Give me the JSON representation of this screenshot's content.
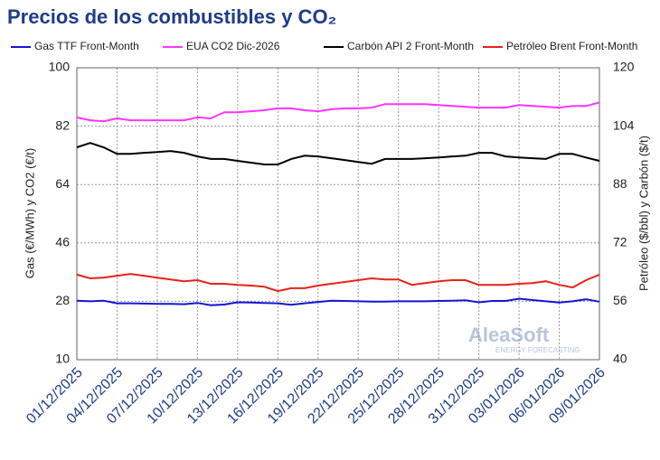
{
  "chart_data": {
    "type": "line",
    "title": "Precios de los combustibles y CO₂",
    "ylabel": "Gas (€/MWh) y CO2 (€/t)",
    "y2label": "Petróleo ($/bbl) y Carbón ($/t)",
    "watermark": [
      "AleaSoft",
      "ENERGY FORECASTING"
    ],
    "categories": [
      "01/12/2025",
      null,
      null,
      "04/12/2025",
      null,
      null,
      "07/12/2025",
      null,
      null,
      "10/12/2025",
      null,
      null,
      "13/12/2025",
      null,
      null,
      "16/12/2025",
      null,
      null,
      "19/12/2025",
      null,
      null,
      "22/12/2025",
      null,
      null,
      "25/12/2025",
      null,
      null,
      "28/12/2025",
      null,
      null,
      "31/12/2025",
      null,
      null,
      "03/01/2026",
      null,
      null,
      "06/01/2026",
      null,
      null,
      "09/01/2026"
    ],
    "ylim": [
      10,
      100
    ],
    "yticks": [
      10,
      28,
      46,
      64,
      82,
      100
    ],
    "y2lim": [
      40,
      120
    ],
    "y2ticks": [
      40,
      56,
      72,
      88,
      104,
      120
    ],
    "grid": true,
    "legend": "top",
    "series": [
      {
        "name": "Gas TTF Front-Month",
        "color": "#1414d8",
        "values": [
          28.2,
          28,
          28.2,
          27.4,
          27.4,
          27.3,
          27.2,
          27.2,
          27.1,
          27.5,
          26.8,
          27,
          27.7,
          27.6,
          27.5,
          27.4,
          26.9,
          27.4,
          27.8,
          28.2,
          28.1,
          28,
          27.9,
          27.9,
          28,
          28,
          28,
          28.1,
          28.2,
          28.3,
          27.7,
          28.1,
          28.1,
          28.8,
          28.4,
          28,
          27.6,
          28,
          28.6,
          27.9
        ]
      },
      {
        "name": "EUA CO2 Dic-2026",
        "color": "#ff33ff",
        "values": [
          84.7,
          83.8,
          83.5,
          84.4,
          83.8,
          83.8,
          83.8,
          83.8,
          83.8,
          84.7,
          84.4,
          86.3,
          86.3,
          86.6,
          86.9,
          87.5,
          87.5,
          86.9,
          86.6,
          87.2,
          87.5,
          87.5,
          87.7,
          88.8,
          88.8,
          88.8,
          88.8,
          88.5,
          88.2,
          88,
          87.7,
          87.7,
          87.7,
          88.5,
          88.2,
          88,
          87.7,
          88.2,
          88.2,
          89.3
        ]
      },
      {
        "name": "Carbón API 2 Front-Month",
        "color": "#000000",
        "axis": "y2",
        "values": [
          98.2,
          99.4,
          98.2,
          96.4,
          96.4,
          96.7,
          96.9,
          97.2,
          96.7,
          95.7,
          95,
          95,
          94.5,
          94,
          93.5,
          93.5,
          95,
          95.9,
          95.7,
          95.2,
          94.7,
          94.2,
          93.7,
          95,
          95,
          95,
          95.2,
          95.4,
          95.7,
          95.9,
          96.7,
          96.7,
          95.7,
          95.4,
          95.2,
          95,
          96.4,
          96.4,
          95.4,
          94.5
        ]
      },
      {
        "name": "Petróleo Brent Front-Month",
        "color": "#e8211b",
        "axis": "y2",
        "values": [
          63.3,
          62.3,
          62.5,
          63,
          63.5,
          63,
          62.5,
          62,
          61.5,
          61.8,
          60.8,
          60.8,
          60.5,
          60.3,
          60,
          58.8,
          59.6,
          59.6,
          60.3,
          60.8,
          61.3,
          61.8,
          62.3,
          62,
          62,
          60.5,
          61,
          61.5,
          61.8,
          61.8,
          60.5,
          60.5,
          60.5,
          60.8,
          61,
          61.5,
          60.5,
          59.8,
          61.8,
          63.3
        ]
      }
    ]
  }
}
